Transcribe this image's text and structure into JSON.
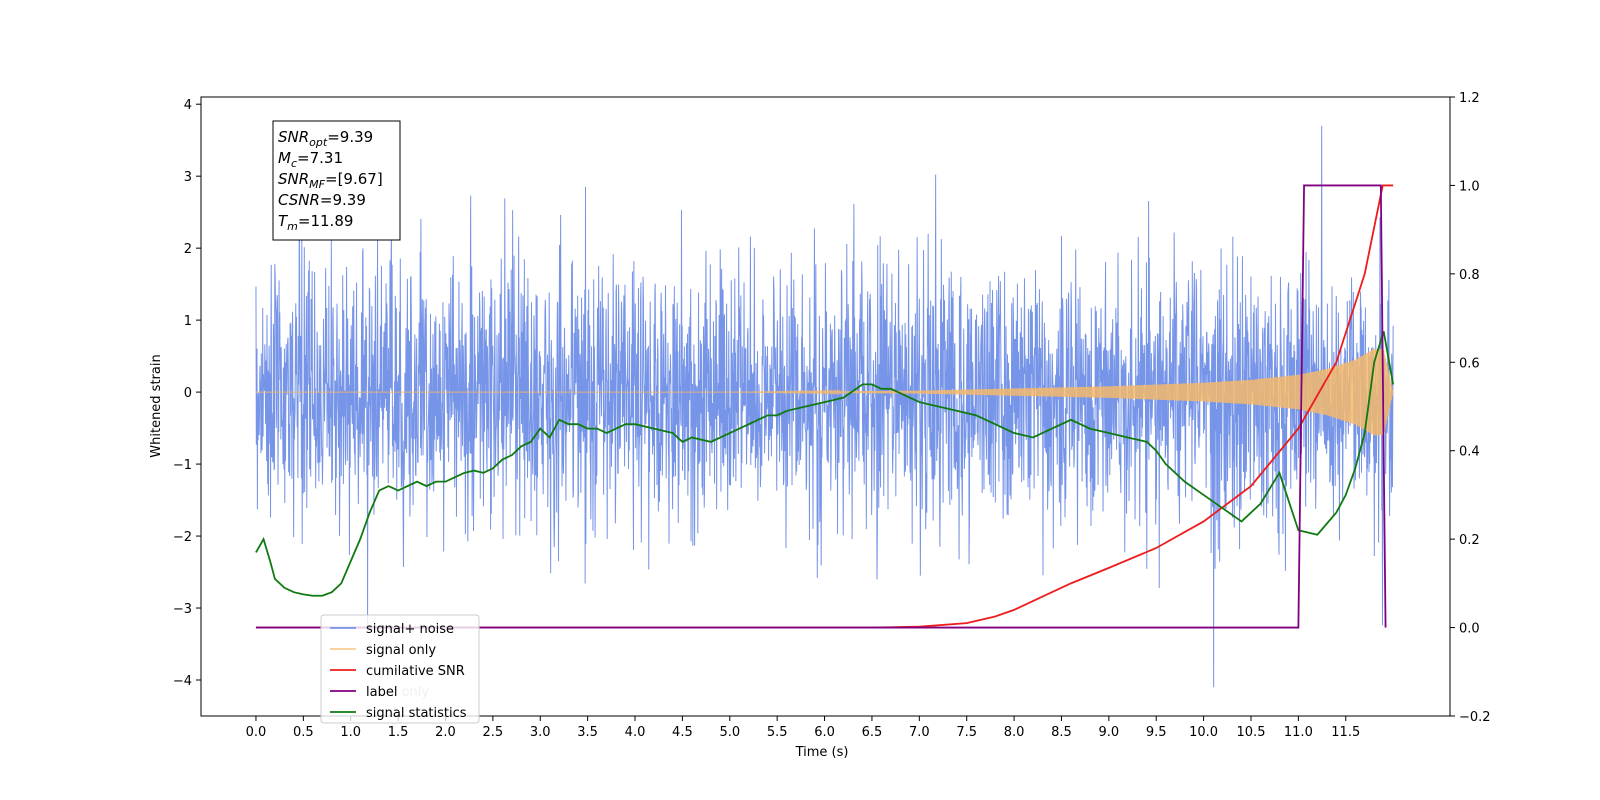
{
  "chart_data": {
    "type": "line",
    "title": "",
    "xlabel": "Time (s)",
    "ylabel": "Whitened strain",
    "xlim": [
      -0.58,
      12.6
    ],
    "ylim": [
      -4.5,
      4.1
    ],
    "y2lim": [
      -0.2,
      1.2
    ],
    "grid": false,
    "legend_position": "lower-left",
    "x_ticks": [
      "0.0",
      "0.5",
      "1.0",
      "1.5",
      "2.0",
      "2.5",
      "3.0",
      "3.5",
      "4.0",
      "4.5",
      "5.0",
      "5.5",
      "6.0",
      "6.5",
      "7.0",
      "7.5",
      "8.0",
      "8.5",
      "9.0",
      "9.5",
      "10.0",
      "10.5",
      "11.0",
      "11.5"
    ],
    "y_ticks": [
      "4",
      "3",
      "2",
      "1",
      "0",
      "−1",
      "−2",
      "−3",
      "−4"
    ],
    "y2_ticks": [
      "1.2",
      "1.0",
      "0.8",
      "0.6",
      "0.4",
      "0.2",
      "0.0",
      "−0.2"
    ],
    "annotation": [
      {
        "base": "SNR",
        "sub": "opt",
        "value": "=9.39"
      },
      {
        "base": "M",
        "sub": "c",
        "value": "=7.31"
      },
      {
        "base": "SNR",
        "sub": "MF",
        "value": "=[9.67]"
      },
      {
        "base": "CSNR",
        "sub": "",
        "value": "=9.39"
      },
      {
        "base": "T",
        "sub": "m",
        "value": "=11.89"
      }
    ],
    "series": [
      {
        "name": "signal+ noise",
        "axis": "left",
        "color": "#7694e8",
        "t_range": [
          0.0,
          12.0
        ],
        "sigma": 0.9,
        "mean": 0.0,
        "max_peak": 3.7,
        "min_trough": -4.1
      },
      {
        "name": "signal only",
        "axis": "left",
        "color": "#f5b86b",
        "envelope": {
          "x": [
            0.0,
            5.0,
            7.0,
            8.0,
            9.0,
            10.0,
            10.5,
            11.0,
            11.3,
            11.6,
            11.8,
            11.9,
            12.0
          ],
          "y": [
            0.0,
            0.0,
            0.02,
            0.05,
            0.08,
            0.13,
            0.17,
            0.24,
            0.32,
            0.45,
            0.6,
            0.6,
            0.0
          ]
        }
      },
      {
        "name": "cumilative SNR",
        "axis": "right",
        "color": "#ee1c1c",
        "x": [
          0.0,
          6.5,
          7.0,
          7.5,
          7.8,
          8.0,
          8.3,
          8.6,
          9.0,
          9.5,
          10.0,
          10.5,
          11.0,
          11.4,
          11.7,
          11.89,
          12.0
        ],
        "y": [
          0.0,
          0.0,
          0.002,
          0.01,
          0.025,
          0.04,
          0.07,
          0.1,
          0.135,
          0.18,
          0.24,
          0.32,
          0.45,
          0.6,
          0.8,
          1.0,
          1.0
        ]
      },
      {
        "name": "label",
        "axis": "right",
        "color": "#800080",
        "x": [
          0.0,
          11.0,
          11.06,
          11.87,
          11.92
        ],
        "y": [
          0.0,
          0.0,
          1.0,
          1.0,
          0.0
        ]
      },
      {
        "name": "label only",
        "axis": "right",
        "color": "#800080",
        "hidden_behind_legend": true
      },
      {
        "name": "signal statistics",
        "axis": "right",
        "color": "#107a10",
        "x": [
          0.0,
          0.08,
          0.15,
          0.2,
          0.3,
          0.4,
          0.5,
          0.6,
          0.7,
          0.8,
          0.9,
          1.0,
          1.1,
          1.2,
          1.3,
          1.4,
          1.5,
          1.6,
          1.7,
          1.8,
          1.9,
          2.0,
          2.1,
          2.2,
          2.3,
          2.4,
          2.5,
          2.6,
          2.7,
          2.8,
          2.9,
          3.0,
          3.1,
          3.2,
          3.3,
          3.4,
          3.5,
          3.6,
          3.7,
          3.8,
          3.9,
          4.0,
          4.2,
          4.4,
          4.5,
          4.6,
          4.8,
          5.0,
          5.2,
          5.4,
          5.5,
          5.6,
          5.8,
          6.0,
          6.2,
          6.4,
          6.5,
          6.6,
          6.7,
          6.8,
          6.9,
          7.0,
          7.2,
          7.4,
          7.6,
          7.8,
          8.0,
          8.2,
          8.4,
          8.6,
          8.8,
          9.0,
          9.2,
          9.4,
          9.5,
          9.6,
          9.8,
          10.0,
          10.2,
          10.4,
          10.6,
          10.8,
          11.0,
          11.2,
          11.4,
          11.5,
          11.6,
          11.7,
          11.8,
          11.9,
          12.0
        ],
        "y": [
          0.17,
          0.2,
          0.15,
          0.11,
          0.09,
          0.08,
          0.075,
          0.072,
          0.072,
          0.08,
          0.1,
          0.15,
          0.2,
          0.26,
          0.31,
          0.32,
          0.31,
          0.32,
          0.33,
          0.32,
          0.33,
          0.33,
          0.34,
          0.35,
          0.355,
          0.35,
          0.36,
          0.38,
          0.39,
          0.41,
          0.42,
          0.45,
          0.43,
          0.47,
          0.46,
          0.46,
          0.45,
          0.45,
          0.44,
          0.45,
          0.46,
          0.46,
          0.45,
          0.44,
          0.42,
          0.43,
          0.42,
          0.44,
          0.46,
          0.48,
          0.48,
          0.49,
          0.5,
          0.51,
          0.52,
          0.55,
          0.55,
          0.54,
          0.54,
          0.53,
          0.52,
          0.51,
          0.5,
          0.49,
          0.48,
          0.46,
          0.44,
          0.43,
          0.45,
          0.47,
          0.45,
          0.44,
          0.43,
          0.42,
          0.4,
          0.37,
          0.33,
          0.3,
          0.27,
          0.24,
          0.28,
          0.35,
          0.22,
          0.21,
          0.26,
          0.3,
          0.36,
          0.44,
          0.6,
          0.67,
          0.55
        ]
      }
    ]
  }
}
